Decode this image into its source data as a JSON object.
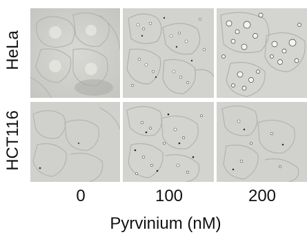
{
  "figure": {
    "row_labels": [
      "HeLa",
      "HCT116"
    ],
    "column_labels": [
      "0",
      "100",
      "200"
    ],
    "x_axis_label": "Pyrvinium (nM)"
  },
  "colors": {
    "micrograph_background": "#cfcfcb",
    "text": "#111111"
  }
}
